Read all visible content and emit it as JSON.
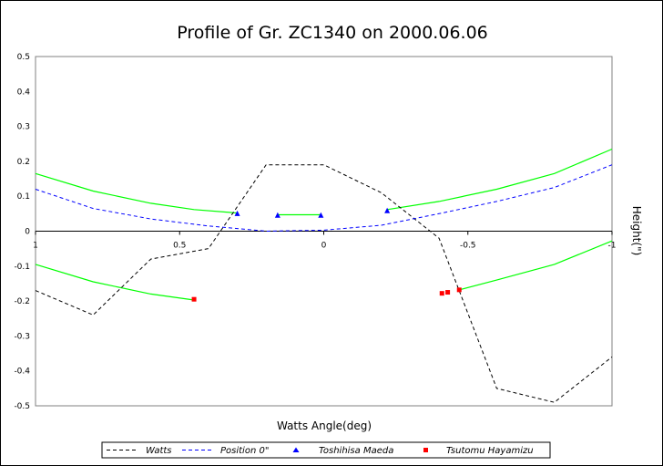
{
  "chart_data": {
    "type": "line",
    "title": "Profile of Gr. ZC1340 on 2000.06.06",
    "xlabel": "Watts Angle(deg)",
    "ylabel": "Height(\")",
    "x_reversed": true,
    "xlim": [
      1,
      -1
    ],
    "ylim": [
      -0.5,
      0.5
    ],
    "x_ticks": [
      {
        "value": 1,
        "label": "1"
      },
      {
        "value": 0.5,
        "label": "0.5"
      },
      {
        "value": 0,
        "label": "0"
      },
      {
        "value": -0.5,
        "label": "-0.5"
      },
      {
        "value": -1,
        "label": "-1"
      }
    ],
    "y_ticks": [
      {
        "value": 0.5,
        "label": "0.5"
      },
      {
        "value": 0.4,
        "label": "0.4"
      },
      {
        "value": 0.3,
        "label": "0.3"
      },
      {
        "value": 0.2,
        "label": "0.2"
      },
      {
        "value": 0.1,
        "label": "0.1"
      },
      {
        "value": 0,
        "label": "0"
      },
      {
        "value": -0.1,
        "label": "-0.1"
      },
      {
        "value": -0.2,
        "label": "-0.2"
      },
      {
        "value": -0.3,
        "label": "-0.3"
      },
      {
        "value": -0.4,
        "label": "-0.4"
      },
      {
        "value": -0.5,
        "label": "-0.5"
      }
    ],
    "grid": false,
    "legend_position": "bottom",
    "series": [
      {
        "name": "Watts",
        "kind": "dashed-line",
        "color": "#000000",
        "points": [
          [
            1.0,
            -0.17
          ],
          [
            0.8,
            -0.24
          ],
          [
            0.6,
            -0.08
          ],
          [
            0.4,
            -0.05
          ],
          [
            0.2,
            0.19
          ],
          [
            0.0,
            0.19
          ],
          [
            -0.2,
            0.11
          ],
          [
            -0.4,
            -0.02
          ],
          [
            -0.6,
            -0.45
          ],
          [
            -0.8,
            -0.49
          ],
          [
            -1.0,
            -0.36
          ]
        ]
      },
      {
        "name": "Position 0\"",
        "kind": "dashed-line",
        "color": "#0000ff",
        "points": [
          [
            1.0,
            0.12
          ],
          [
            0.8,
            0.065
          ],
          [
            0.6,
            0.035
          ],
          [
            0.4,
            0.015
          ],
          [
            0.2,
            0.0
          ],
          [
            0.0,
            0.003
          ],
          [
            -0.2,
            0.017
          ],
          [
            -0.4,
            0.05
          ],
          [
            -0.6,
            0.085
          ],
          [
            -0.8,
            0.125
          ],
          [
            -1.0,
            0.19
          ]
        ]
      },
      {
        "name": "Toshihisa Maeda",
        "kind": "markers",
        "marker": "triangle",
        "color": "#0000ff",
        "points": [
          [
            0.3,
            0.05
          ],
          [
            0.16,
            0.045
          ],
          [
            0.01,
            0.045
          ],
          [
            -0.22,
            0.058
          ]
        ]
      },
      {
        "name": "Tsutomu Hayamizu",
        "kind": "markers",
        "marker": "square",
        "color": "#ff0000",
        "points": [
          [
            0.45,
            -0.195
          ],
          [
            -0.41,
            -0.178
          ],
          [
            -0.43,
            -0.175
          ],
          [
            -0.47,
            -0.168
          ]
        ]
      }
    ],
    "unlabeled_lines": [
      {
        "color": "#00ff00",
        "points": [
          [
            1.0,
            0.165
          ],
          [
            0.8,
            0.115
          ],
          [
            0.6,
            0.08
          ],
          [
            0.45,
            0.062
          ],
          [
            0.3,
            0.052
          ]
        ]
      },
      {
        "color": "#00ff00",
        "points": [
          [
            0.16,
            0.047
          ],
          [
            0.01,
            0.047
          ]
        ]
      },
      {
        "color": "#00ff00",
        "points": [
          [
            -0.22,
            0.062
          ],
          [
            -0.4,
            0.085
          ],
          [
            -0.6,
            0.12
          ],
          [
            -0.8,
            0.165
          ],
          [
            -1.0,
            0.235
          ]
        ]
      },
      {
        "color": "#00ff00",
        "points": [
          [
            1.0,
            -0.095
          ],
          [
            0.8,
            -0.145
          ],
          [
            0.6,
            -0.18
          ],
          [
            0.45,
            -0.197
          ]
        ]
      },
      {
        "color": "#00ff00",
        "points": [
          [
            -0.47,
            -0.168
          ],
          [
            -0.6,
            -0.14
          ],
          [
            -0.8,
            -0.095
          ],
          [
            -1.0,
            -0.028
          ]
        ]
      }
    ]
  }
}
